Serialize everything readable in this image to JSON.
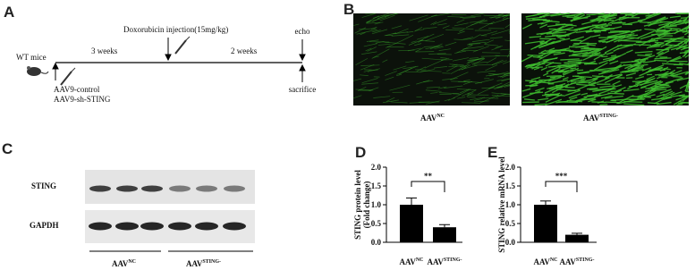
{
  "panelA": {
    "letter": "A",
    "subject": "WT mice",
    "interval1": "3 weeks",
    "injection": "Doxorubicin injection(15mg/kg)",
    "interval2": "2 weeks",
    "endpoint_top": "echo",
    "endpoint_bottom": "sacrifice",
    "groups": [
      "AAV9-control",
      "AAV9-sh-STING"
    ]
  },
  "panelB": {
    "letter": "B",
    "labels": [
      {
        "base": "AAV",
        "sup": "NC"
      },
      {
        "base": "AAV",
        "sup": "STING-"
      }
    ]
  },
  "panelC": {
    "letter": "C",
    "rows": [
      "STING",
      "GAPDH"
    ],
    "groups": [
      {
        "base": "AAV",
        "sup": "NC"
      },
      {
        "base": "AAV",
        "sup": "STING-"
      }
    ]
  },
  "chart_data": [
    {
      "type": "bar",
      "letter": "D",
      "ylabel": [
        "STING protein level",
        "(Fold change)"
      ],
      "categories": [
        {
          "base": "AAV",
          "sup": "NC"
        },
        {
          "base": "AAV",
          "sup": "STING-"
        }
      ],
      "values": [
        1.0,
        0.4
      ],
      "errors": [
        0.18,
        0.07
      ],
      "color": "#000000",
      "significance": "**",
      "ylim": [
        0,
        2
      ],
      "yticks": [
        {
          "value": 0,
          "label": "0.0"
        },
        {
          "value": 0.5,
          "label": "0.5"
        },
        {
          "value": 1,
          "label": "1.0"
        },
        {
          "value": 1.5,
          "label": "1.5"
        },
        {
          "value": 2,
          "label": "2.0"
        }
      ]
    },
    {
      "type": "bar",
      "letter": "E",
      "ylabel": [
        "STING relative mRNA level"
      ],
      "categories": [
        {
          "base": "AAV",
          "sup": "NC"
        },
        {
          "base": "AAV",
          "sup": "STING-"
        }
      ],
      "values": [
        1.0,
        0.2
      ],
      "errors": [
        0.1,
        0.04
      ],
      "color": "#000000",
      "significance": "***",
      "ylim": [
        0,
        2
      ],
      "yticks": [
        {
          "value": 0,
          "label": "0.0"
        },
        {
          "value": 0.5,
          "label": "0.5"
        },
        {
          "value": 1,
          "label": "1.0"
        },
        {
          "value": 1.5,
          "label": "1.5"
        },
        {
          "value": 2,
          "label": "2.0"
        }
      ]
    }
  ]
}
